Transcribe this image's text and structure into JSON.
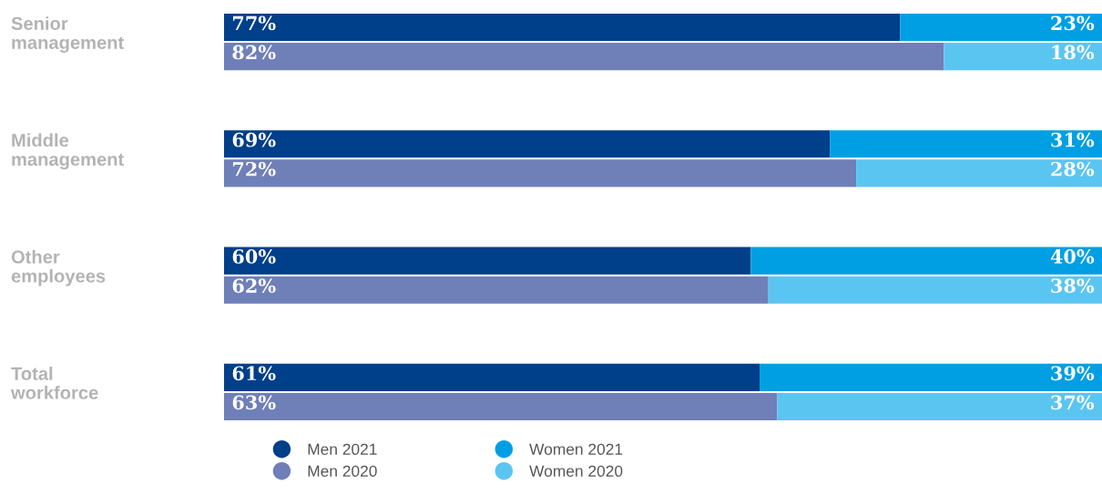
{
  "chart_data": {
    "type": "bar",
    "orientation": "horizontal",
    "stacked": true,
    "categories": [
      "Senior\nmanagement",
      null,
      null,
      null,
      "Middle\nmanagement",
      null,
      null,
      null,
      "Other\nemployees",
      null,
      null,
      null,
      "Total\nworkforce",
      null
    ],
    "series": [
      {
        "name": "Men 2021",
        "color": "#003f8a",
        "values": [
          77,
          null,
          null,
          null,
          69,
          null,
          null,
          null,
          60,
          null,
          null,
          null,
          61,
          null
        ],
        "value_labels": [
          "77%",
          null,
          null,
          null,
          "69%",
          null,
          null,
          null,
          "60%",
          null,
          null,
          null,
          "61%",
          null
        ]
      },
      {
        "name": "Women 2021",
        "color": "#009fe3",
        "values": [
          23,
          null,
          null,
          null,
          31,
          null,
          null,
          null,
          40,
          null,
          null,
          null,
          39,
          null
        ],
        "value_labels": [
          "23%",
          null,
          null,
          null,
          "31%",
          null,
          null,
          null,
          "40%",
          null,
          null,
          null,
          "39%",
          null
        ]
      },
      {
        "name": "Men 2020",
        "color": "#6f7fb8",
        "values": [
          null,
          82,
          null,
          null,
          null,
          72,
          null,
          null,
          null,
          62,
          null,
          null,
          null,
          63
        ],
        "value_labels": [
          null,
          "82%",
          null,
          null,
          null,
          "72%",
          null,
          null,
          null,
          "62%",
          null,
          null,
          null,
          "63%"
        ]
      },
      {
        "name": "Women 2020",
        "color": "#5bc5f2",
        "values": [
          null,
          18,
          null,
          null,
          null,
          28,
          null,
          null,
          null,
          38,
          null,
          null,
          null,
          37
        ],
        "value_labels": [
          null,
          "18%",
          null,
          null,
          null,
          "28%",
          null,
          null,
          null,
          "38%",
          null,
          null,
          null,
          "37%"
        ]
      }
    ],
    "tick_labels": "y",
    "legend": "bottom"
  }
}
